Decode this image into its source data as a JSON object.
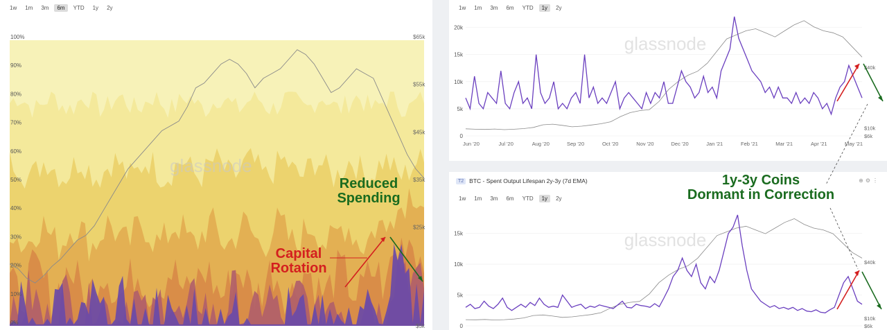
{
  "timeframes": [
    "1w",
    "1m",
    "3m",
    "6m",
    "YTD",
    "1y",
    "2y"
  ],
  "left_chart": {
    "active_tf": "6m"
  },
  "right_top_chart": {
    "active_tf": "1y"
  },
  "right_bottom_chart": {
    "active_tf": "1y",
    "title": "BTC - Spent Output Lifespan 2y-3y (7d EMA)",
    "badge": "T2"
  },
  "watermark": "glassnode",
  "annotations": {
    "reduced_spending": [
      "Reduced",
      "Spending"
    ],
    "capital_rotation": [
      "Capital",
      "Rotation"
    ],
    "dormant": [
      "1y-3y Coins",
      "Dormant in Correction"
    ]
  },
  "colors": {
    "green": "#1a6b1f",
    "red": "#d41f1f",
    "purple": "#6a3fbf",
    "price": "#8a8a8a"
  },
  "chart_data": [
    {
      "type": "area",
      "stacked": true,
      "percent": true,
      "y_left_ticks": [
        "0%",
        "10%",
        "20%",
        "30%",
        "40%",
        "50%",
        "60%",
        "70%",
        "80%",
        "90%",
        "100%"
      ],
      "y_right_ticks": [
        "$65k",
        "$55k",
        "$45k",
        "$35k",
        "$25k"
      ],
      "y_right_range": [
        5000,
        65000
      ],
      "y_right_bottom_tick": "$5k",
      "layers": [
        {
          "approx_level": 0.78,
          "color": "#f3e898"
        },
        {
          "approx_level": 0.55,
          "color": "#ead06a"
        },
        {
          "approx_level": 0.32,
          "color": "#e2ac50"
        },
        {
          "approx_level": 0.15,
          "color": "#d88a48"
        },
        {
          "approx_level": 0.06,
          "color": "#b1606a"
        },
        {
          "approx_level": 0.02,
          "color": "#6a4aa8"
        }
      ],
      "price": [
        18000,
        17000,
        15000,
        14000,
        15500,
        17500,
        19000,
        21000,
        23000,
        24000,
        26000,
        29000,
        32000,
        35000,
        38000,
        40000,
        42000,
        44000,
        46000,
        47000,
        48000,
        51000,
        55000,
        56000,
        58000,
        60000,
        61000,
        60000,
        58000,
        55000,
        57000,
        58000,
        59000,
        61000,
        63000,
        62000,
        60000,
        57000,
        54000,
        55000,
        57000,
        59000,
        58000,
        57000,
        53000,
        49000,
        45000,
        41000,
        38000,
        36000
      ]
    },
    {
      "type": "line",
      "x_ticks": [
        "Jun '20",
        "Jul '20",
        "Aug '20",
        "Sep '20",
        "Oct '20",
        "Nov '20",
        "Dec '20",
        "Jan '21",
        "Feb '21",
        "Mar '21",
        "Apr '21",
        "May '21"
      ],
      "y_left_ticks": [
        "0",
        "5k",
        "10k",
        "15k",
        "20k"
      ],
      "y_left_range": [
        0,
        22000
      ],
      "y_right_ticks": [
        "$40k",
        "$10k",
        "$6k"
      ],
      "price_range": [
        6000,
        65000
      ],
      "series": [
        {
          "values": [
            7000,
            5000,
            11000,
            6000,
            5000,
            8000,
            7000,
            6000,
            12000,
            6000,
            5000,
            8000,
            10000,
            6000,
            7000,
            5000,
            15000,
            8000,
            6000,
            7000,
            10000,
            5000,
            6000,
            5000,
            7000,
            8000,
            6000,
            15000,
            7000,
            9000,
            6000,
            7000,
            6000,
            8000,
            10000,
            5000,
            7000,
            8000,
            7000,
            6000,
            5000,
            8000,
            6000,
            8000,
            7000,
            10000,
            6000,
            6000,
            9000,
            12000,
            10000,
            9000,
            7000,
            8000,
            11000,
            8000,
            9000,
            7000,
            12000,
            14000,
            16000,
            22000,
            18000,
            16000,
            14000,
            12000,
            11000,
            10000,
            8000,
            9000,
            7000,
            9000,
            7000,
            7000,
            6000,
            8000,
            6000,
            7000,
            6000,
            8000,
            7000,
            5000,
            6000,
            4000,
            7000,
            9000,
            10000,
            13000,
            11000,
            9000,
            7000
          ]
        },
        {
          "values": [
            9500,
            9300,
            9200,
            9400,
            9100,
            9300,
            9600,
            10200,
            11500,
            11800,
            11200,
            10500,
            10800,
            11400,
            12000,
            13000,
            15500,
            17500,
            18500,
            19000,
            23000,
            29000,
            33000,
            36000,
            38000,
            42000,
            48000,
            54000,
            56000,
            58000,
            59000,
            57000,
            55000,
            58000,
            61000,
            63000,
            60000,
            58000,
            57000,
            55000,
            50000,
            45000
          ]
        }
      ]
    },
    {
      "type": "line",
      "title": "BTC - Spent Output Lifespan 2y-3y (7d EMA)",
      "y_left_ticks": [
        "0",
        "5k",
        "10k",
        "15k"
      ],
      "y_left_range": [
        0,
        18000
      ],
      "y_right_ticks": [
        "$40k",
        "$10k",
        "$6k"
      ],
      "price_range": [
        6000,
        65000
      ],
      "series": [
        {
          "values": [
            3000,
            3500,
            2800,
            3000,
            4000,
            3200,
            2800,
            3500,
            4500,
            3000,
            2500,
            3000,
            3500,
            3000,
            3800,
            3300,
            4500,
            3500,
            3000,
            3200,
            3000,
            5000,
            4000,
            3000,
            3300,
            3500,
            2800,
            3200,
            3000,
            3400,
            3200,
            3000,
            2800,
            3400,
            4000,
            3000,
            2900,
            3500,
            3300,
            3200,
            3000,
            3600,
            3100,
            4500,
            6000,
            8000,
            9000,
            11000,
            9000,
            8000,
            10000,
            7000,
            6000,
            8000,
            7000,
            9000,
            12000,
            15000,
            16000,
            18000,
            13000,
            9000,
            6000,
            5000,
            4000,
            3500,
            3000,
            3300,
            2800,
            3000,
            2700,
            3000,
            2500,
            2800,
            2400,
            2300,
            2600,
            2200,
            2100,
            2600,
            3000,
            5000,
            7000,
            8000,
            6000,
            4000,
            3500
          ]
        },
        {
          "values": [
            9300,
            9200,
            9400,
            9100,
            9300,
            9600,
            10200,
            11500,
            11800,
            11200,
            10500,
            10800,
            11400,
            12000,
            13000,
            15500,
            17500,
            18500,
            19000,
            23000,
            29000,
            33000,
            36000,
            38000,
            42000,
            48000,
            54000,
            56000,
            58000,
            59000,
            57000,
            55000,
            58000,
            61000,
            63000,
            60000,
            58000,
            57000,
            55000,
            50000,
            45000,
            42000
          ]
        }
      ]
    }
  ]
}
